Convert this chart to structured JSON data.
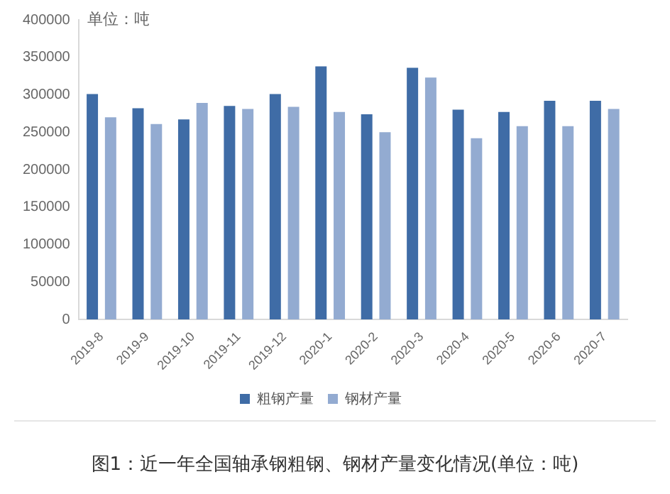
{
  "chart_data": {
    "type": "bar",
    "title": "图1：近一年全国轴承钢粗钢、钢材产量变化情况(单位：吨)",
    "ylabel": "单位：吨",
    "categories": [
      "2019-8",
      "2019-9",
      "2019-10",
      "2019-11",
      "2019-12",
      "2020-1",
      "2020-2",
      "2020-3",
      "2020-4",
      "2020-5",
      "2020-6",
      "2020-7"
    ],
    "series": [
      {
        "name": "粗钢产量",
        "color": "#3f6ca6",
        "values": [
          301000,
          282000,
          267000,
          285000,
          301000,
          338000,
          274000,
          336000,
          280000,
          277000,
          292000,
          292000
        ]
      },
      {
        "name": "钢材产量",
        "color": "#93abd1",
        "values": [
          270000,
          261000,
          289000,
          281000,
          284000,
          277000,
          250000,
          323000,
          242000,
          258000,
          258000,
          281000
        ]
      }
    ],
    "ylim": [
      0,
      400000
    ],
    "yticks": [
      0,
      50000,
      100000,
      150000,
      200000,
      250000,
      300000,
      350000,
      400000
    ],
    "grid": false,
    "legend": "bottom"
  }
}
